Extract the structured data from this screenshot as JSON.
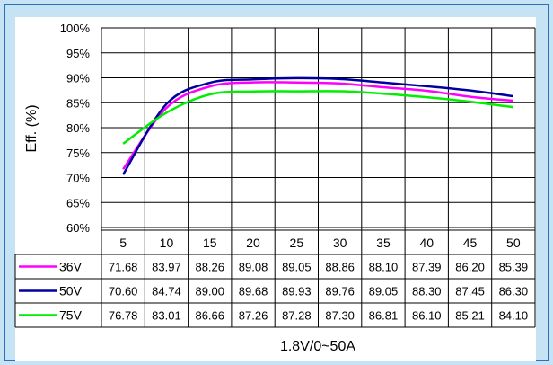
{
  "chart_data": {
    "type": "line",
    "title": "",
    "ylabel": "Eff. (%)",
    "xlabel": "1.8V/0~50A",
    "x": [
      5,
      10,
      15,
      20,
      25,
      30,
      35,
      40,
      45,
      50
    ],
    "x_tick_labels": [
      "5",
      "10",
      "15",
      "20",
      "25",
      "30",
      "35",
      "40",
      "45",
      "50"
    ],
    "ylim": [
      60,
      100
    ],
    "y_tick_labels": [
      "60%",
      "65%",
      "70%",
      "75%",
      "80%",
      "85%",
      "90%",
      "95%",
      "100%"
    ],
    "grid": true,
    "legend": "table-left",
    "series": [
      {
        "name": "36V",
        "color": "#ff00ff",
        "values": [
          71.68,
          83.97,
          88.26,
          89.08,
          89.05,
          88.86,
          88.1,
          87.39,
          86.2,
          85.39
        ],
        "labels": [
          "71.68",
          "83.97",
          "88.26",
          "89.08",
          "89.05",
          "88.86",
          "88.10",
          "87.39",
          "86.20",
          "85.39"
        ]
      },
      {
        "name": "50V",
        "color": "#0000a0",
        "values": [
          70.6,
          84.74,
          89.0,
          89.68,
          89.93,
          89.76,
          89.05,
          88.3,
          87.45,
          86.3
        ],
        "labels": [
          "70.60",
          "84.74",
          "89.00",
          "89.68",
          "89.93",
          "89.76",
          "89.05",
          "88.30",
          "87.45",
          "86.30"
        ]
      },
      {
        "name": "75V",
        "color": "#00ee00",
        "values": [
          76.78,
          83.01,
          86.66,
          87.26,
          87.28,
          87.3,
          86.81,
          86.1,
          85.21,
          84.1
        ],
        "labels": [
          "76.78",
          "83.01",
          "86.66",
          "87.26",
          "87.28",
          "87.30",
          "86.81",
          "86.10",
          "85.21",
          "84.10"
        ]
      }
    ],
    "colors": {
      "background": "#c6e3f3",
      "border": "#2f6fbf",
      "plot": "#ffffff"
    }
  }
}
